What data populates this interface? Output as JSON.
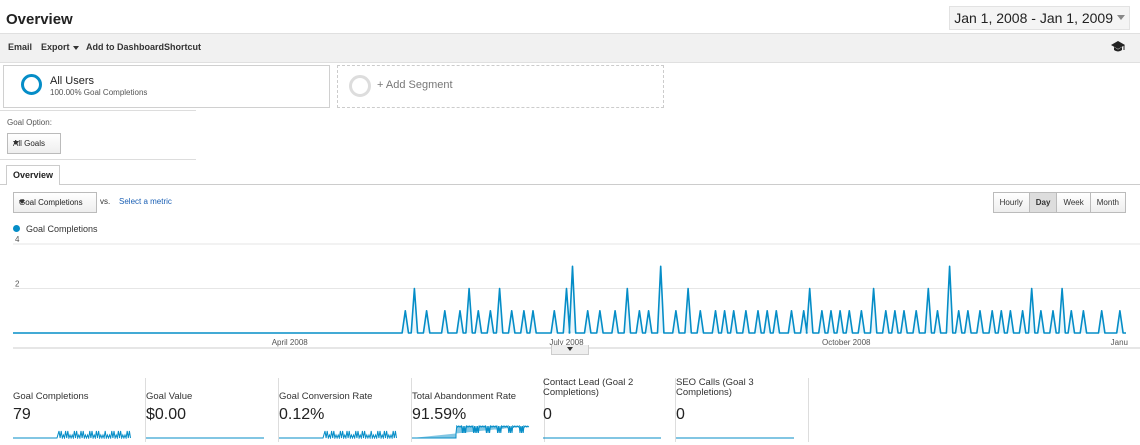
{
  "header": {
    "title": "Overview",
    "date_range": "Jan 1, 2008 - Jan 1, 2009"
  },
  "toolbar": {
    "email": "Email",
    "export": "Export",
    "add_to_dashboard": "Add to Dashboard",
    "shortcut": "Shortcut",
    "icon": "graduation-cap-icon"
  },
  "segments": {
    "active": {
      "name": "All Users",
      "sub": "100.00% Goal Completions"
    },
    "add_label": "+ Add Segment"
  },
  "goal_option": {
    "label": "Goal Option:",
    "selected": "All Goals"
  },
  "tabs": {
    "overview": "Overview"
  },
  "metric_controls": {
    "selected": "Goal Completions",
    "vs": "vs.",
    "select_metric": "Select a metric"
  },
  "granularity": [
    "Hourly",
    "Day",
    "Week",
    "Month"
  ],
  "granularity_active": "Day",
  "chart_data": {
    "type": "line",
    "title": "",
    "series": [
      {
        "name": "Goal Completions",
        "color": "#058dc7"
      }
    ],
    "ylim": [
      0,
      4
    ],
    "yticks": [
      2,
      4
    ],
    "xlim": [
      "2008-01-01",
      "2009-01-01"
    ],
    "xticks": [
      "April 2008",
      "July 2008",
      "October 2008",
      "Janu"
    ],
    "spikes": [
      {
        "d": "2008-05-09",
        "v": 1
      },
      {
        "d": "2008-05-12",
        "v": 2
      },
      {
        "d": "2008-05-16",
        "v": 1
      },
      {
        "d": "2008-05-22",
        "v": 1
      },
      {
        "d": "2008-05-27",
        "v": 1
      },
      {
        "d": "2008-05-30",
        "v": 2
      },
      {
        "d": "2008-06-02",
        "v": 1
      },
      {
        "d": "2008-06-06",
        "v": 1
      },
      {
        "d": "2008-06-09",
        "v": 2
      },
      {
        "d": "2008-06-13",
        "v": 1
      },
      {
        "d": "2008-06-17",
        "v": 1
      },
      {
        "d": "2008-06-20",
        "v": 1
      },
      {
        "d": "2008-06-27",
        "v": 1
      },
      {
        "d": "2008-07-01",
        "v": 2
      },
      {
        "d": "2008-07-03",
        "v": 3
      },
      {
        "d": "2008-07-08",
        "v": 1
      },
      {
        "d": "2008-07-12",
        "v": 1
      },
      {
        "d": "2008-07-17",
        "v": 1
      },
      {
        "d": "2008-07-21",
        "v": 2
      },
      {
        "d": "2008-07-25",
        "v": 1
      },
      {
        "d": "2008-07-28",
        "v": 1
      },
      {
        "d": "2008-08-01",
        "v": 3
      },
      {
        "d": "2008-08-06",
        "v": 1
      },
      {
        "d": "2008-08-10",
        "v": 2
      },
      {
        "d": "2008-08-14",
        "v": 1
      },
      {
        "d": "2008-08-19",
        "v": 1
      },
      {
        "d": "2008-08-22",
        "v": 1
      },
      {
        "d": "2008-08-25",
        "v": 1
      },
      {
        "d": "2008-08-29",
        "v": 1
      },
      {
        "d": "2008-09-02",
        "v": 1
      },
      {
        "d": "2008-09-05",
        "v": 1
      },
      {
        "d": "2008-09-08",
        "v": 1
      },
      {
        "d": "2008-09-13",
        "v": 1
      },
      {
        "d": "2008-09-17",
        "v": 1
      },
      {
        "d": "2008-09-19",
        "v": 2
      },
      {
        "d": "2008-09-23",
        "v": 1
      },
      {
        "d": "2008-09-26",
        "v": 1
      },
      {
        "d": "2008-09-29",
        "v": 1
      },
      {
        "d": "2008-10-02",
        "v": 1
      },
      {
        "d": "2008-10-06",
        "v": 1
      },
      {
        "d": "2008-10-10",
        "v": 2
      },
      {
        "d": "2008-10-14",
        "v": 1
      },
      {
        "d": "2008-10-17",
        "v": 1
      },
      {
        "d": "2008-10-20",
        "v": 1
      },
      {
        "d": "2008-10-24",
        "v": 1
      },
      {
        "d": "2008-10-28",
        "v": 2
      },
      {
        "d": "2008-10-31",
        "v": 1
      },
      {
        "d": "2008-11-04",
        "v": 3
      },
      {
        "d": "2008-11-07",
        "v": 1
      },
      {
        "d": "2008-11-10",
        "v": 1
      },
      {
        "d": "2008-11-14",
        "v": 1
      },
      {
        "d": "2008-11-18",
        "v": 1
      },
      {
        "d": "2008-11-21",
        "v": 1
      },
      {
        "d": "2008-11-24",
        "v": 1
      },
      {
        "d": "2008-11-28",
        "v": 1
      },
      {
        "d": "2008-12-01",
        "v": 2
      },
      {
        "d": "2008-12-04",
        "v": 1
      },
      {
        "d": "2008-12-08",
        "v": 1
      },
      {
        "d": "2008-12-11",
        "v": 2
      },
      {
        "d": "2008-12-14",
        "v": 1
      },
      {
        "d": "2008-12-18",
        "v": 1
      },
      {
        "d": "2008-12-24",
        "v": 1
      },
      {
        "d": "2008-12-30",
        "v": 1
      }
    ]
  },
  "scorecards": [
    {
      "label": "Goal Completions",
      "value": "79"
    },
    {
      "label": "Goal Value",
      "value": "$0.00"
    },
    {
      "label": "Goal Conversion Rate",
      "value": "0.12%"
    },
    {
      "label": "Total Abandonment Rate",
      "value": "91.59%"
    },
    {
      "label": "Contact Lead (Goal 2 Completions)",
      "value": "0"
    },
    {
      "label": "SEO Calls (Goal 3 Completions)",
      "value": "0"
    }
  ]
}
